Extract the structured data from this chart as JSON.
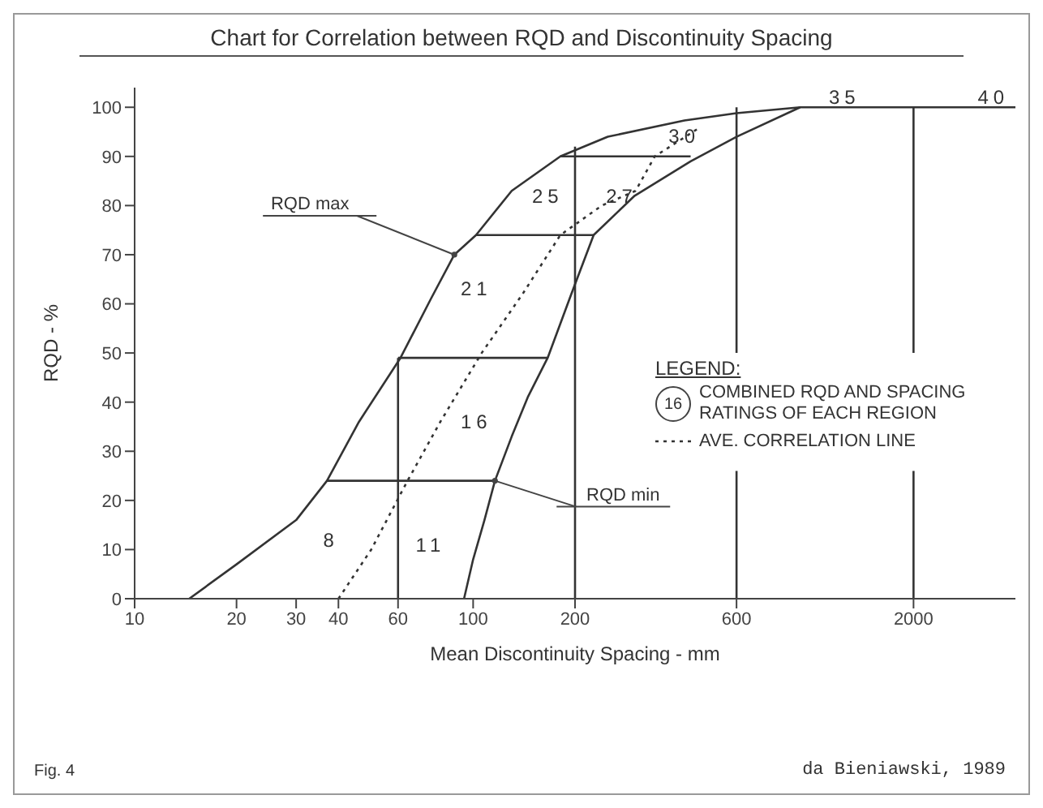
{
  "chart_data": {
    "type": "line",
    "title": "Chart for Correlation between RQD and Discontinuity Spacing",
    "xlabel": "Mean Discontinuity Spacing - mm",
    "ylabel": "RQD - %",
    "legend_title": "LEGEND:",
    "log": "x",
    "xlim": [
      10,
      4000
    ],
    "ylim": [
      0,
      104
    ],
    "xticks": [
      10,
      20,
      30,
      40,
      60,
      100,
      200,
      600,
      2000
    ],
    "yticks": [
      0,
      10,
      20,
      30,
      40,
      50,
      60,
      70,
      80,
      90,
      100
    ],
    "legend": "right",
    "marker": "none",
    "series": [
      {
        "name": "RQD max",
        "color": "#333333",
        "line_style": "solid",
        "x": [
          14.5,
          20,
          30,
          37,
          46,
          61,
          75,
          88,
          102,
          130,
          181,
          250,
          421,
          600,
          925,
          4000
        ],
        "values": [
          0,
          7,
          16,
          24,
          36,
          49,
          61,
          70,
          74,
          83,
          90,
          94,
          97.3,
          98.8,
          100,
          100
        ]
      },
      {
        "name": "RQD min",
        "color": "#333333",
        "line_style": "solid",
        "x": [
          94,
          100,
          108,
          116,
          130,
          145,
          166,
          195,
          227,
          300,
          439,
          600,
          925
        ],
        "values": [
          0,
          8,
          16,
          24,
          33,
          41,
          49,
          62,
          74,
          82,
          89,
          94,
          100
        ]
      },
      {
        "name": "AVE. CORRELATION LINE",
        "color": "#333333",
        "line_style": "dotted",
        "x": [
          40,
          50,
          64,
          80,
          106,
          140,
          181,
          240,
          302,
          344,
          470
        ],
        "values": [
          0,
          10,
          24,
          36,
          50,
          62,
          74,
          80,
          83,
          90,
          96
        ]
      },
      {
        "color": "#333333",
        "line_style": "solid",
        "x": [
          37,
          116
        ],
        "values": [
          24,
          24
        ]
      },
      {
        "color": "#333333",
        "line_style": "solid",
        "x": [
          60,
          166
        ],
        "values": [
          49,
          49
        ]
      },
      {
        "color": "#333333",
        "line_style": "solid",
        "x": [
          102,
          227
        ],
        "values": [
          74,
          74
        ]
      },
      {
        "color": "#333333",
        "line_style": "solid",
        "x": [
          181,
          439
        ],
        "values": [
          90,
          90
        ]
      },
      {
        "color": "#333333",
        "line_style": "solid",
        "x": [
          60,
          60
        ],
        "values": [
          0,
          49
        ]
      },
      {
        "color": "#333333",
        "line_style": "solid",
        "x": [
          200,
          200
        ],
        "values": [
          0,
          92
        ]
      },
      {
        "color": "#333333",
        "line_style": "solid",
        "x": [
          600,
          600
        ],
        "values": [
          0,
          26
        ]
      },
      {
        "color": "#333333",
        "line_style": "solid",
        "x": [
          600,
          600
        ],
        "values": [
          50,
          100
        ]
      },
      {
        "color": "#333333",
        "line_style": "solid",
        "x": [
          2000,
          2000
        ],
        "values": [
          0,
          26
        ]
      },
      {
        "color": "#333333",
        "line_style": "solid",
        "x": [
          2000,
          2000
        ],
        "values": [
          50,
          100
        ]
      }
    ],
    "annotations": [
      "8",
      "11",
      "16",
      "21",
      "25",
      "27",
      "30",
      "35",
      "40",
      "16",
      "COMBINED RQD AND SPACING RATINGS OF EACH REGION",
      "Fig. 4",
      "da Bieniawski, 1989"
    ]
  }
}
